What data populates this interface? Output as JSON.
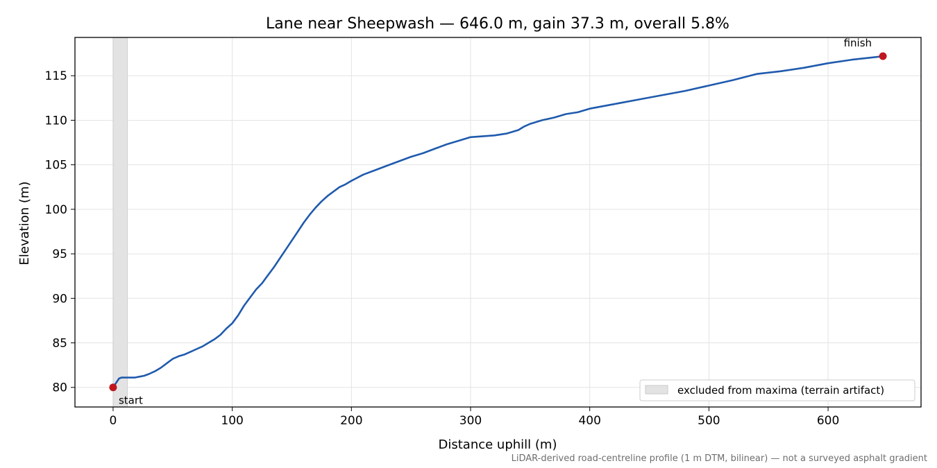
{
  "chart_data": {
    "type": "line",
    "title": "Lane near Sheepwash — 646.0 m, gain 37.3 m, overall 5.8%",
    "xlabel": "Distance uphill (m)",
    "ylabel": "Elevation (m)",
    "xlim": [
      -32,
      678
    ],
    "ylim": [
      77.8,
      119.3
    ],
    "xticks": [
      0,
      100,
      200,
      300,
      400,
      500,
      600
    ],
    "yticks": [
      80,
      85,
      90,
      95,
      100,
      105,
      110,
      115
    ],
    "grid": true,
    "legend_position": "lower-right",
    "footnote": "LiDAR-derived road-centreline profile (1 m DTM, bilinear) — not a surveyed asphalt gradient",
    "series": [
      {
        "color": "#1f5aad",
        "x": [
          0,
          3,
          5,
          7,
          9,
          11,
          13,
          15,
          18,
          22,
          26,
          30,
          35,
          40,
          45,
          50,
          55,
          60,
          65,
          70,
          75,
          80,
          85,
          90,
          95,
          100,
          105,
          110,
          115,
          120,
          125,
          130,
          135,
          140,
          145,
          150,
          155,
          160,
          165,
          170,
          175,
          180,
          185,
          190,
          195,
          200,
          210,
          220,
          230,
          240,
          250,
          260,
          270,
          280,
          290,
          300,
          310,
          320,
          330,
          340,
          345,
          350,
          360,
          370,
          380,
          390,
          400,
          420,
          440,
          460,
          480,
          500,
          520,
          540,
          560,
          580,
          600,
          620,
          640,
          646
        ],
        "y": [
          80.0,
          80.6,
          81.0,
          81.1,
          81.1,
          81.1,
          81.1,
          81.1,
          81.1,
          81.2,
          81.3,
          81.5,
          81.8,
          82.2,
          82.7,
          83.2,
          83.5,
          83.7,
          84.0,
          84.3,
          84.6,
          85.0,
          85.4,
          85.9,
          86.6,
          87.2,
          88.1,
          89.2,
          90.1,
          91.0,
          91.7,
          92.6,
          93.5,
          94.5,
          95.5,
          96.5,
          97.5,
          98.5,
          99.4,
          100.2,
          100.9,
          101.5,
          102.0,
          102.5,
          102.8,
          103.2,
          103.9,
          104.4,
          104.9,
          105.4,
          105.9,
          106.3,
          106.8,
          107.3,
          107.7,
          108.1,
          108.2,
          108.3,
          108.5,
          108.9,
          109.3,
          109.6,
          110.0,
          110.3,
          110.7,
          110.9,
          111.3,
          111.8,
          112.3,
          112.8,
          113.3,
          113.9,
          114.5,
          115.2,
          115.5,
          115.9,
          116.4,
          116.8,
          117.1,
          117.2
        ]
      }
    ],
    "excluded_band": {
      "x0": 0,
      "x1": 12,
      "label": "excluded from maxima (terrain artifact)",
      "color": "#e3e3e3"
    },
    "markers": [
      {
        "x": 0,
        "y": 80.0,
        "label": "start",
        "color": "#c0171f"
      },
      {
        "x": 646,
        "y": 117.2,
        "label": "finish",
        "color": "#c0171f"
      }
    ]
  }
}
